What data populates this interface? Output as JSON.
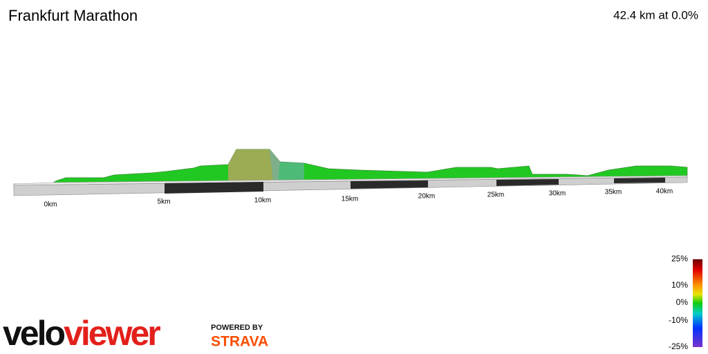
{
  "header": {
    "title": "Frankfurt Marathon",
    "summary": "42.4 km at 0.0%"
  },
  "distance_labels": [
    "0km",
    "5km",
    "10km",
    "15km",
    "20km",
    "25km",
    "30km",
    "35km",
    "40km"
  ],
  "gradient_legend": {
    "labels": [
      "25%",
      "10%",
      "0%",
      "-10%",
      "-25%"
    ]
  },
  "branding": {
    "logo": [
      "velo",
      "viewer"
    ],
    "powered_by": "POWERED BY",
    "partner": "STRAVA"
  }
}
